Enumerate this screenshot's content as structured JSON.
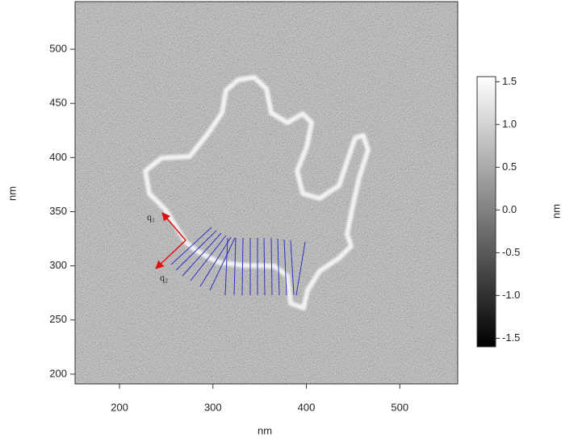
{
  "chart_data": {
    "type": "image",
    "x_label": "nm",
    "y_label": "nm",
    "colorbar_label": "nm",
    "xlim": [
      152.4,
      562
    ],
    "xticks": [
      200,
      300,
      400,
      500
    ],
    "ylim": [
      191,
      544
    ],
    "yticks": [
      200,
      250,
      300,
      350,
      400,
      450,
      500
    ],
    "zlim": [
      -1.6,
      1.56
    ],
    "zticks": [
      1.5,
      {
        "value": 1,
        "label": "1.0"
      },
      0.5,
      {
        "value": 0,
        "label": "0.0"
      },
      -0.5,
      {
        "value": -1,
        "label": "-1.0"
      },
      -1.5
    ],
    "annotations": [
      "q₁",
      "q₂"
    ]
  }
}
